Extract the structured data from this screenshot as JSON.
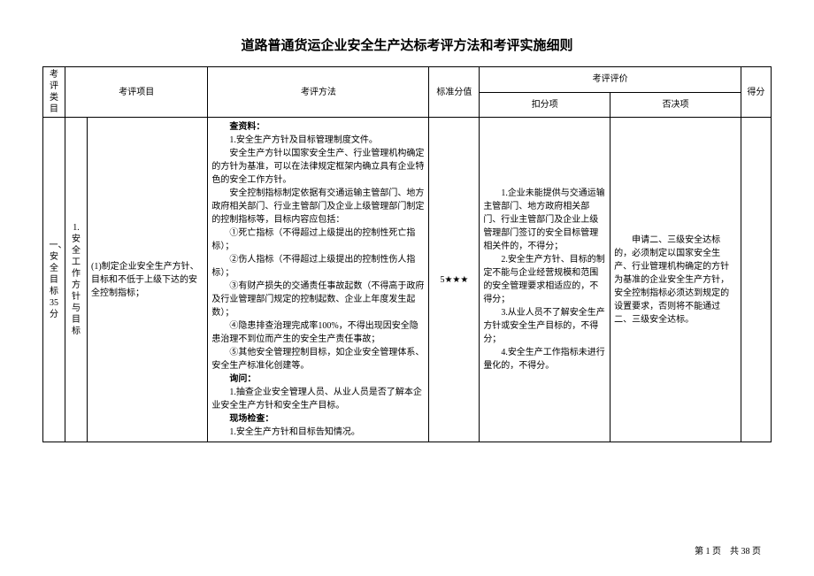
{
  "title": "道路普通货运企业安全生产达标考评方法和考评实施细则",
  "header": {
    "cat": "考评类目",
    "proj": "考评项目",
    "method": "考评方法",
    "stdScore": "标准分值",
    "eval": "考评评价",
    "deduct": "扣分项",
    "veto": "否决项",
    "final": "得分"
  },
  "row": {
    "catLabel": "一、安全目标35分",
    "subLabel": "1.安全工作方针与目标",
    "proj": "(1)制定企业安全生产方针、目标和不低于上级下达的安全控制指标；",
    "method": {
      "sec1": "查资料：",
      "m1": "1.安全生产方针及目标管理制度文件。",
      "m2": "安全生产方针以国家安全生产、行业管理机构确定的方针为基准，可以在法律规定框架内确立具有企业特色的安全工作方针。",
      "m3": "安全控制指标制定依据有交通运输主管部门、地方政府相关部门、行业主管部门及企业上级管理部门制定的控制指标等，目标内容应包括：",
      "m4": "①死亡指标（不得超过上级提出的控制性死亡指标）；",
      "m5": "②伤人指标（不得超过上级提出的控制性伤人指标）；",
      "m6": "③有财产损失的交通责任事故起数（不得高于政府及行业管理部门规定的控制起数、企业上年度发生起数）；",
      "m7": "④隐患排查治理完成率100%，不得出现因安全隐患治理不到位而产生的安全生产责任事故；",
      "m8": "⑤其他安全管理控制目标，如企业安全管理体系、安全生产标准化创建等。",
      "sec2": "询问：",
      "m9": "1.抽查企业安全管理人员、从业人员是否了解本企业安全生产方针和安全生产目标。",
      "sec3": "现场检查：",
      "m10": "1.安全生产方针和目标告知情况。"
    },
    "score": "5★★★",
    "deduct": {
      "d1": "1.企业未能提供与交通运输主管部门、地方政府相关部门、行业主管部门及企业上级管理部门签订的安全目标管理相关件的，不得分；",
      "d2": "2.安全生产方针、目标的制定不能与企业经营规模和范围的安全管理要求相适应的，不得分；",
      "d3": "3.从业人员不了解安全生产方针或安全生产目标的，不得分；",
      "d4": "4.安全生产工作指标未进行量化的，不得分。"
    },
    "veto": "　　申请二、三级安全达标的，必须制定以国家安全生产、行业管理机构确定的方针为基准的企业安全生产方针，安全控制指标必须达到规定的设置要求，否则将不能通过二、三级安全达标。"
  },
  "footer": "第 1 页　共 38 页"
}
